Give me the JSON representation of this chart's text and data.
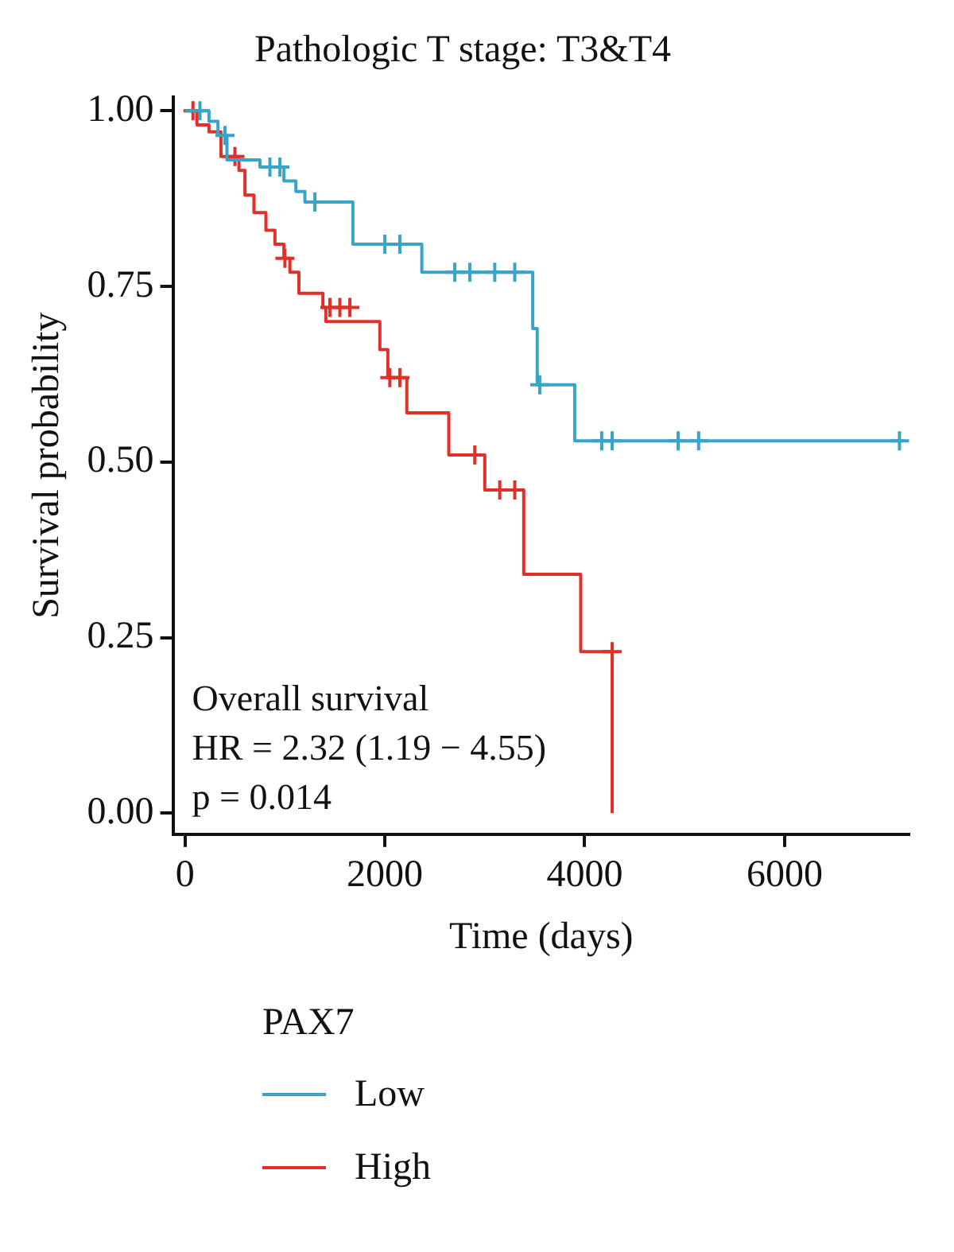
{
  "chart_data": {
    "type": "step",
    "title": "Pathologic T stage: T3&T4",
    "xlabel": "Time (days)",
    "ylabel": "Survival probability",
    "legend_title": "PAX7",
    "legend": "bottom",
    "grid": false,
    "line_style": "solid",
    "xlim": [
      -120,
      7250
    ],
    "xticks": [
      0,
      2000,
      4000,
      6000
    ],
    "ylim": [
      -0.03,
      1.02
    ],
    "yticks": [
      {
        "value": 0,
        "label": "0.00"
      },
      {
        "value": 0.25,
        "label": "0.25"
      },
      {
        "value": 0.5,
        "label": "0.50"
      },
      {
        "value": 0.75,
        "label": "0.75"
      },
      {
        "value": 1,
        "label": "1.00"
      }
    ],
    "series": [
      {
        "name": "Low",
        "color": "#3aa3c8",
        "x": [
          0,
          240,
          330,
          420,
          750,
          990,
          1110,
          1200,
          1680,
          2370,
          3480,
          3525,
          3900,
          7190
        ],
        "values": [
          1,
          0.985,
          0.965,
          0.93,
          0.92,
          0.9,
          0.885,
          0.87,
          0.81,
          0.77,
          0.69,
          0.61,
          0.53,
          0.53
        ]
      },
      {
        "name": "High",
        "color": "#e0302a",
        "x": [
          0,
          120,
          240,
          360,
          540,
          600,
          690,
          810,
          900,
          990,
          1050,
          1140,
          1380,
          1410,
          1950,
          2030,
          2220,
          2640,
          3000,
          3390,
          3960,
          4275
        ],
        "values": [
          1,
          0.98,
          0.97,
          0.935,
          0.915,
          0.88,
          0.855,
          0.83,
          0.81,
          0.79,
          0.77,
          0.74,
          0.72,
          0.7,
          0.66,
          0.62,
          0.57,
          0.51,
          0.46,
          0.34,
          0.23,
          0
        ]
      },
      {
        "type": "scatter",
        "marker": "cross",
        "color": "#3aa3c8",
        "x": [
          150,
          400,
          850,
          950,
          1300,
          2000,
          2150,
          2700,
          2850,
          3100,
          3300,
          3550,
          4170,
          4275,
          4935,
          5140,
          7150
        ],
        "values": [
          1,
          0.965,
          0.92,
          0.92,
          0.87,
          0.81,
          0.81,
          0.77,
          0.77,
          0.77,
          0.77,
          0.61,
          0.53,
          0.53,
          0.53,
          0.53,
          0.53
        ]
      },
      {
        "type": "scatter",
        "marker": "cross",
        "color": "#e0302a",
        "x": [
          80,
          500,
          1000,
          1450,
          1550,
          1650,
          2050,
          2150,
          2900,
          3150,
          3300,
          4275
        ],
        "values": [
          1,
          0.935,
          0.79,
          0.72,
          0.72,
          0.72,
          0.62,
          0.62,
          0.51,
          0.46,
          0.46,
          0.23
        ]
      }
    ],
    "annotations": [
      "Overall survival",
      "HR = 2.32 (1.19 − 4.55)",
      "p = 0.014"
    ]
  }
}
